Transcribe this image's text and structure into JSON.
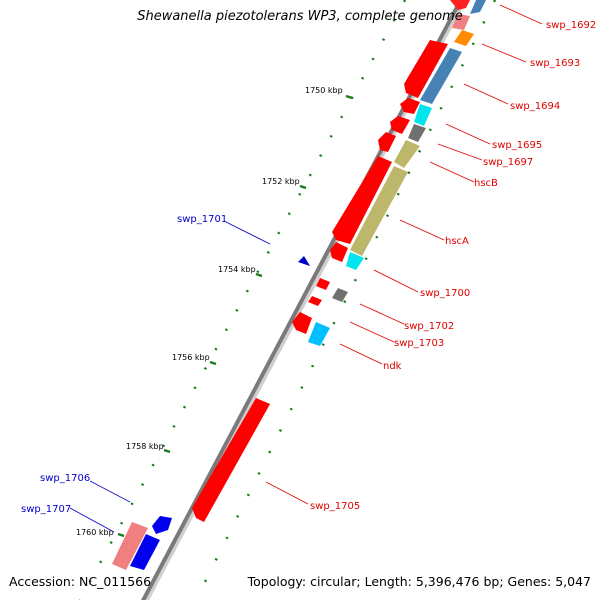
{
  "title": "Shewanella piezotolerans WP3, complete genome",
  "accession": "Accession: NC_011566",
  "topology": "Topology: circular; Length: 5,396,476 bp; Genes: 5,047",
  "ticks": [
    {
      "kbp": 1750,
      "label": "1750 kbp"
    },
    {
      "kbp": 1752,
      "label": "1752 kbp"
    },
    {
      "kbp": 1754,
      "label": "1754 kbp"
    },
    {
      "kbp": 1756,
      "label": "1756 kbp"
    },
    {
      "kbp": 1758,
      "label": "1758 kbp"
    },
    {
      "kbp": 1760,
      "label": "1760 kbp"
    }
  ],
  "gene_labels": {
    "swp_1692": "swp_1692",
    "swp_1693": "swp_1693",
    "swp_1694": "swp_1694",
    "swp_1695": "swp_1695",
    "swp_1697": "swp_1697",
    "hscB": "hscB",
    "hscA": "hscA",
    "swp_1700": "swp_1700",
    "swp_1701": "swp_1701",
    "swp_1702": "swp_1702",
    "swp_1703": "swp_1703",
    "ndk": "ndk",
    "swp_1705": "swp_1705",
    "swp_1706": "swp_1706",
    "swp_1707": "swp_1707"
  },
  "colors": {
    "label_red": "#e00000",
    "label_blue": "#0000cc",
    "backbone": "#808080",
    "tick": "#1e7a1e"
  }
}
